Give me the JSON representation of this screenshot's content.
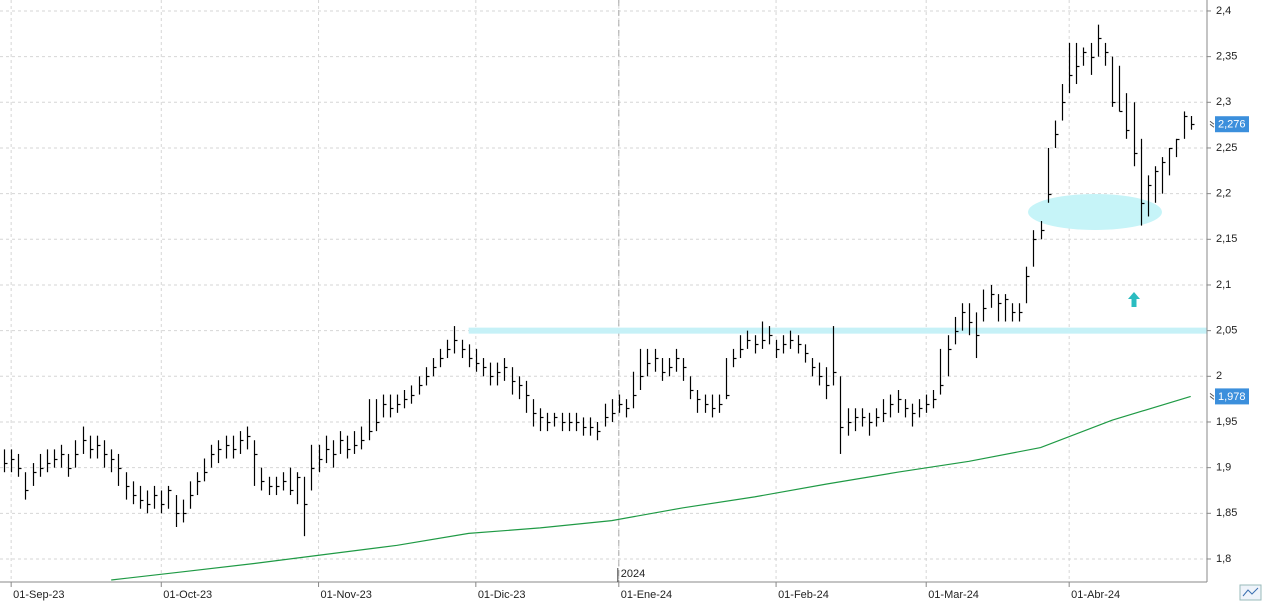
{
  "chart_data": {
    "type": "ohlc",
    "xlim": [
      -0.56,
      168
    ],
    "ylim": [
      1.7748,
      2.412
    ],
    "grid": true,
    "yticks": [
      {
        "value": 2.4,
        "label": "2,4"
      },
      {
        "value": 2.35,
        "label": "2,35"
      },
      {
        "value": 2.3,
        "label": "2,3"
      },
      {
        "value": 2.25,
        "label": "2,25"
      },
      {
        "value": 2.2,
        "label": "2,2"
      },
      {
        "value": 2.15,
        "label": "2,15"
      },
      {
        "value": 2.1,
        "label": "2,1"
      },
      {
        "value": 2.05,
        "label": "2,05"
      },
      2,
      {
        "value": 1.95,
        "label": "1,95"
      },
      {
        "value": 1.9,
        "label": "1,9"
      },
      {
        "value": 1.85,
        "label": "1,85"
      },
      {
        "value": 1.8,
        "label": "1,8"
      }
    ],
    "xticks": [
      {
        "value": 1,
        "label": "01-Sep-23"
      },
      {
        "value": 22,
        "label": "01-Oct-23"
      },
      {
        "value": 44,
        "label": "01-Nov-23"
      },
      {
        "value": 66,
        "label": "01-Dic-23"
      },
      {
        "value": 86,
        "label": "01-Ene-24"
      },
      {
        "value": 108,
        "label": "01-Feb-24"
      },
      {
        "value": 129,
        "label": "01-Mar-24"
      },
      {
        "value": 149,
        "label": "01-Abr-24"
      }
    ],
    "year_marker": {
      "value": 86,
      "label": "2024"
    },
    "bars": {
      "color": "#000000",
      "high": [
        1.92,
        1.92,
        1.915,
        1.895,
        1.905,
        1.915,
        1.92,
        1.92,
        1.925,
        1.915,
        1.93,
        1.945,
        1.935,
        1.935,
        1.93,
        1.92,
        1.915,
        1.895,
        1.885,
        1.88,
        1.875,
        1.88,
        1.875,
        1.88,
        1.87,
        1.865,
        1.885,
        1.895,
        1.91,
        1.925,
        1.93,
        1.935,
        1.935,
        1.94,
        1.945,
        1.93,
        1.9,
        1.89,
        1.89,
        1.895,
        1.9,
        1.895,
        1.89,
        1.925,
        1.925,
        1.935,
        1.93,
        1.94,
        1.935,
        1.94,
        1.945,
        1.975,
        1.975,
        1.98,
        1.98,
        1.98,
        1.985,
        1.99,
        2.0,
        2.01,
        2.02,
        2.03,
        2.04,
        2.055,
        2.04,
        2.035,
        2.03,
        2.02,
        2.015,
        2.015,
        2.02,
        2.01,
        2.0,
        1.995,
        1.975,
        1.965,
        1.96,
        1.96,
        1.96,
        1.96,
        1.96,
        1.955,
        1.955,
        1.95,
        1.97,
        1.975,
        1.98,
        1.975,
        2.005,
        2.03,
        2.03,
        2.03,
        2.02,
        2.02,
        2.03,
        2.02,
        2.0,
        1.985,
        1.98,
        1.98,
        1.98,
        2.02,
        2.03,
        2.045,
        2.05,
        2.045,
        2.06,
        2.055,
        2.04,
        2.045,
        2.05,
        2.045,
        2.035,
        2.02,
        2.015,
        2.01,
        2.055,
        2.0,
        1.965,
        1.965,
        1.965,
        1.96,
        1.965,
        1.975,
        1.98,
        1.985,
        1.975,
        1.97,
        1.975,
        1.98,
        1.985,
        2.03,
        2.045,
        2.065,
        2.08,
        2.08,
        2.07,
        2.095,
        2.1,
        2.09,
        2.09,
        2.08,
        2.08,
        2.12,
        2.16,
        2.17,
        2.25,
        2.28,
        2.32,
        2.365,
        2.365,
        2.36,
        2.365,
        2.385,
        2.365,
        2.35,
        2.34,
        2.31,
        2.3,
        2.26,
        2.22,
        2.23,
        2.24,
        2.25,
        2.26,
        2.29,
        2.285
      ],
      "low": [
        1.895,
        1.895,
        1.89,
        1.865,
        1.88,
        1.89,
        1.895,
        1.9,
        1.9,
        1.89,
        1.9,
        1.915,
        1.91,
        1.91,
        1.9,
        1.895,
        1.88,
        1.865,
        1.86,
        1.855,
        1.85,
        1.855,
        1.85,
        1.855,
        1.835,
        1.84,
        1.855,
        1.87,
        1.885,
        1.9,
        1.905,
        1.91,
        1.91,
        1.915,
        1.92,
        1.88,
        1.875,
        1.87,
        1.87,
        1.875,
        1.87,
        1.86,
        1.825,
        1.875,
        1.895,
        1.905,
        1.9,
        1.915,
        1.91,
        1.915,
        1.92,
        1.93,
        1.94,
        1.955,
        1.955,
        1.96,
        1.965,
        1.97,
        1.98,
        1.99,
        2.0,
        2.01,
        2.02,
        2.025,
        2.02,
        2.01,
        2.005,
        2.0,
        1.99,
        1.99,
        1.995,
        1.98,
        1.975,
        1.96,
        1.945,
        1.94,
        1.94,
        1.945,
        1.94,
        1.94,
        1.94,
        1.935,
        1.935,
        1.93,
        1.945,
        1.95,
        1.96,
        1.955,
        1.965,
        1.985,
        2.0,
        2.005,
        1.995,
        2.0,
        2.005,
        1.995,
        1.975,
        1.96,
        1.96,
        1.955,
        1.96,
        1.975,
        2.01,
        2.02,
        2.03,
        2.025,
        2.03,
        2.035,
        2.02,
        2.025,
        2.03,
        2.025,
        2.015,
        2.0,
        1.99,
        1.975,
        1.99,
        1.915,
        1.935,
        1.94,
        1.945,
        1.935,
        1.945,
        1.95,
        1.955,
        1.96,
        1.955,
        1.945,
        1.955,
        1.96,
        1.965,
        1.98,
        2.0,
        2.035,
        2.05,
        2.045,
        2.02,
        2.06,
        2.075,
        2.06,
        2.06,
        2.06,
        2.06,
        2.08,
        2.12,
        2.15,
        2.19,
        2.25,
        2.28,
        2.31,
        2.32,
        2.34,
        2.33,
        2.35,
        2.34,
        2.295,
        2.29,
        2.26,
        2.23,
        2.165,
        2.175,
        2.19,
        2.2,
        2.22,
        2.24,
        2.26,
        2.27
      ],
      "close": [
        1.905,
        1.91,
        1.9,
        1.875,
        1.895,
        1.9,
        1.905,
        1.91,
        1.915,
        1.9,
        1.915,
        1.93,
        1.92,
        1.925,
        1.915,
        1.91,
        1.9,
        1.88,
        1.87,
        1.865,
        1.86,
        1.87,
        1.86,
        1.875,
        1.85,
        1.85,
        1.87,
        1.885,
        1.895,
        1.915,
        1.92,
        1.925,
        1.92,
        1.93,
        1.935,
        1.915,
        1.885,
        1.88,
        1.88,
        1.885,
        1.875,
        1.89,
        1.86,
        1.9,
        1.91,
        1.92,
        1.915,
        1.93,
        1.92,
        1.925,
        1.93,
        1.94,
        1.95,
        1.97,
        1.965,
        1.97,
        1.975,
        1.98,
        1.99,
        2.0,
        2.01,
        2.02,
        2.03,
        2.04,
        2.03,
        2.02,
        2.015,
        2.01,
        2.0,
        2.005,
        2.01,
        1.995,
        1.99,
        1.98,
        1.96,
        1.955,
        1.95,
        1.955,
        1.95,
        1.95,
        1.95,
        1.945,
        1.945,
        1.94,
        1.955,
        1.96,
        1.97,
        1.965,
        1.98,
        2.0,
        2.015,
        2.02,
        2.005,
        2.01,
        2.02,
        2.01,
        1.985,
        1.975,
        1.97,
        1.965,
        1.97,
        1.98,
        2.02,
        2.03,
        2.04,
        2.035,
        2.04,
        2.045,
        2.03,
        2.035,
        2.04,
        2.035,
        2.025,
        2.01,
        2.0,
        1.99,
        2.005,
        1.945,
        1.95,
        1.955,
        1.955,
        1.95,
        1.955,
        1.96,
        1.97,
        1.975,
        1.965,
        1.96,
        1.965,
        1.97,
        1.975,
        1.99,
        2.03,
        2.05,
        2.07,
        2.06,
        2.045,
        2.075,
        2.09,
        2.08,
        2.085,
        2.07,
        2.07,
        2.11,
        2.15,
        2.16,
        2.2,
        2.265,
        2.3,
        2.33,
        2.34,
        2.355,
        2.35,
        2.37,
        2.355,
        2.3,
        2.29,
        2.27,
        2.245,
        2.19,
        2.21,
        2.225,
        2.235,
        2.25,
        2.26,
        2.285,
        2.276
      ],
      "last_label": {
        "value": 2.276,
        "label": "2,276"
      }
    },
    "moving_average": {
      "color": "#1f9a45",
      "x": [
        15,
        25,
        35,
        45,
        55,
        65,
        75,
        85,
        95,
        105,
        115,
        125,
        135,
        145,
        155,
        166
      ],
      "values": [
        1.777,
        1.786,
        1.795,
        1.805,
        1.815,
        1.828,
        1.834,
        1.842,
        1.856,
        1.868,
        1.882,
        1.895,
        1.907,
        1.922,
        1.952,
        1.978
      ],
      "last_label": {
        "value": 1.978,
        "label": "1,978"
      }
    },
    "hline": {
      "value": 2.05,
      "from": 65,
      "color": "#c6f1f7"
    },
    "label_color": "#3b8fdc"
  }
}
